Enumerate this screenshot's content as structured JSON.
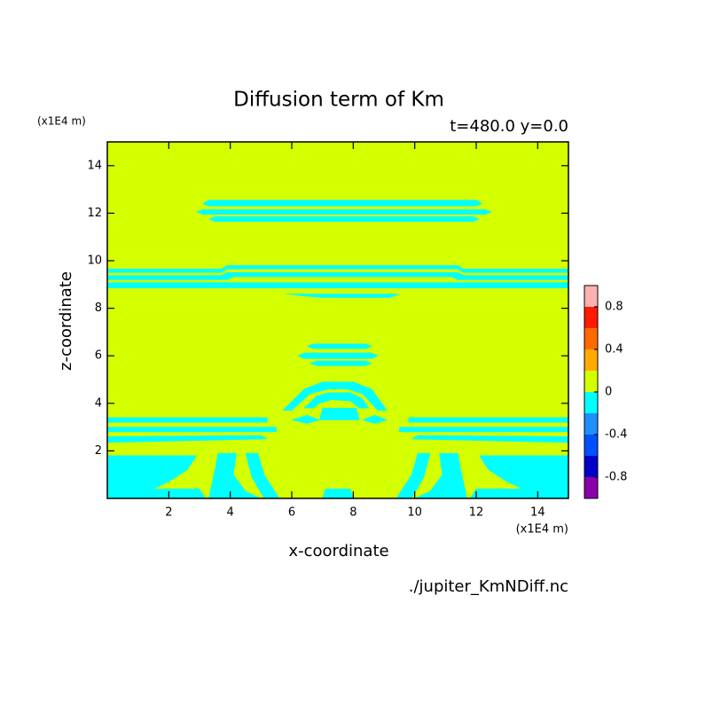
{
  "chart_data": {
    "type": "contour",
    "title": "Diffusion term of Km",
    "subtitle": "t=480.0 y=0.0",
    "xlabel": "x-coordinate",
    "ylabel": "z-coordinate",
    "x_unit": "(x1E4 m)",
    "y_unit": "(x1E4 m)",
    "footer": "./jupiter_KmNDiff.nc",
    "xlim": [
      0,
      15
    ],
    "ylim": [
      0,
      15
    ],
    "xticks": [
      2,
      4,
      6,
      8,
      10,
      12,
      14
    ],
    "yticks": [
      2,
      4,
      6,
      8,
      10,
      12,
      14
    ],
    "levels": [
      -1,
      -0.8,
      -0.6,
      -0.4,
      -0.2,
      0,
      0.2,
      0.4,
      0.6,
      0.8,
      1
    ],
    "colors": [
      "#8a00a8",
      "#0000c8",
      "#0050ff",
      "#1e90ff",
      "#00ffff",
      "#d4ff00",
      "#ffaa00",
      "#ff6a00",
      "#ff1a00",
      "#ffb0b0"
    ],
    "colorbar_ticks": [
      -0.8,
      -0.4,
      0,
      0.4,
      0.8
    ],
    "regions": [
      {
        "min": 0,
        "max": 0.2,
        "polygons": [
          [
            [
              0,
              0
            ],
            [
              0,
              15
            ],
            [
              15,
              15
            ],
            [
              15,
              0
            ]
          ]
        ]
      },
      {
        "min": -0.2,
        "max": 0,
        "polygons": [
          [
            [
              3.1,
              12.4
            ],
            [
              3.3,
              12.55
            ],
            [
              12.0,
              12.55
            ],
            [
              12.2,
              12.4
            ],
            [
              12.0,
              12.3
            ],
            [
              3.3,
              12.3
            ]
          ],
          [
            [
              2.9,
              12.05
            ],
            [
              3.1,
              12.15
            ],
            [
              12.3,
              12.15
            ],
            [
              12.5,
              12.05
            ],
            [
              12.3,
              11.95
            ],
            [
              3.1,
              11.95
            ]
          ],
          [
            [
              3.3,
              11.75
            ],
            [
              3.5,
              11.85
            ],
            [
              11.9,
              11.85
            ],
            [
              12.1,
              11.75
            ],
            [
              11.9,
              11.65
            ],
            [
              3.5,
              11.65
            ]
          ],
          [
            [
              0,
              9.5
            ],
            [
              0,
              9.65
            ],
            [
              3.7,
              9.65
            ],
            [
              3.9,
              9.8
            ],
            [
              11.4,
              9.8
            ],
            [
              11.6,
              9.65
            ],
            [
              15,
              9.65
            ],
            [
              15,
              9.5
            ],
            [
              11.6,
              9.5
            ],
            [
              11.4,
              9.65
            ],
            [
              3.9,
              9.65
            ],
            [
              3.7,
              9.5
            ]
          ],
          [
            [
              0,
              9.2
            ],
            [
              0,
              9.38
            ],
            [
              3.7,
              9.38
            ],
            [
              3.9,
              9.5
            ],
            [
              11.4,
              9.5
            ],
            [
              11.6,
              9.38
            ],
            [
              15,
              9.38
            ],
            [
              15,
              9.2
            ],
            [
              11.4,
              9.2
            ],
            [
              11.2,
              9.32
            ],
            [
              4.1,
              9.32
            ],
            [
              3.9,
              9.2
            ]
          ],
          [
            [
              0,
              8.85
            ],
            [
              0,
              9.08
            ],
            [
              15,
              9.08
            ],
            [
              15,
              8.85
            ]
          ],
          [
            [
              5.8,
              8.6
            ],
            [
              6.5,
              8.5
            ],
            [
              7,
              8.45
            ],
            [
              9.2,
              8.45
            ],
            [
              9.5,
              8.6
            ]
          ],
          [
            [
              6.5,
              6.4
            ],
            [
              6.7,
              6.5
            ],
            [
              8.4,
              6.5
            ],
            [
              8.6,
              6.4
            ],
            [
              8.4,
              6.3
            ],
            [
              6.7,
              6.3
            ]
          ],
          [
            [
              6.2,
              6.0
            ],
            [
              6.4,
              6.12
            ],
            [
              8.6,
              6.12
            ],
            [
              8.8,
              6.0
            ],
            [
              8.6,
              5.88
            ],
            [
              6.4,
              5.88
            ]
          ],
          [
            [
              6.6,
              5.68
            ],
            [
              6.8,
              5.78
            ],
            [
              8.4,
              5.78
            ],
            [
              8.6,
              5.68
            ],
            [
              8.4,
              5.58
            ],
            [
              6.8,
              5.58
            ]
          ],
          [
            [
              5.7,
              3.7
            ],
            [
              6.4,
              4.6
            ],
            [
              7.0,
              4.9
            ],
            [
              8.0,
              4.9
            ],
            [
              8.6,
              4.6
            ],
            [
              9.1,
              3.7
            ],
            [
              8.8,
              3.7
            ],
            [
              8.3,
              4.4
            ],
            [
              7.8,
              4.6
            ],
            [
              7.2,
              4.6
            ],
            [
              6.6,
              4.4
            ],
            [
              6.0,
              3.7
            ]
          ],
          [
            [
              6.4,
              3.8
            ],
            [
              6.8,
              4.3
            ],
            [
              7.2,
              4.45
            ],
            [
              7.9,
              4.45
            ],
            [
              8.3,
              4.2
            ],
            [
              8.5,
              3.8
            ],
            [
              8.2,
              3.8
            ],
            [
              7.9,
              4.1
            ],
            [
              7.3,
              4.15
            ],
            [
              6.9,
              4.0
            ],
            [
              6.7,
              3.8
            ]
          ],
          [
            [
              6.9,
              3.3
            ],
            [
              7.0,
              3.8
            ],
            [
              8.1,
              3.8
            ],
            [
              8.2,
              3.3
            ]
          ],
          [
            [
              6.0,
              3.3
            ],
            [
              6.5,
              3.5
            ],
            [
              6.9,
              3.3
            ],
            [
              6.5,
              3.15
            ]
          ],
          [
            [
              8.3,
              3.3
            ],
            [
              8.7,
              3.5
            ],
            [
              9.1,
              3.3
            ],
            [
              8.7,
              3.15
            ]
          ],
          [
            [
              0,
              3.2
            ],
            [
              0,
              3.4
            ],
            [
              5.2,
              3.4
            ],
            [
              5.2,
              3.2
            ]
          ],
          [
            [
              0,
              2.8
            ],
            [
              0,
              3.0
            ],
            [
              5.5,
              3.0
            ],
            [
              5.5,
              2.8
            ]
          ],
          [
            [
              0,
              2.35
            ],
            [
              0,
              2.6
            ],
            [
              5.0,
              2.65
            ],
            [
              5.2,
              2.5
            ]
          ],
          [
            [
              9.8,
              3.2
            ],
            [
              9.8,
              3.4
            ],
            [
              15,
              3.4
            ],
            [
              15,
              3.2
            ]
          ],
          [
            [
              9.5,
              2.8
            ],
            [
              9.5,
              3.0
            ],
            [
              15,
              3.0
            ],
            [
              15,
              2.8
            ]
          ],
          [
            [
              9.9,
              2.5
            ],
            [
              10.1,
              2.65
            ],
            [
              15,
              2.6
            ],
            [
              15,
              2.35
            ]
          ],
          [
            [
              0,
              0
            ],
            [
              0,
              1.8
            ],
            [
              2.9,
              1.8
            ],
            [
              2.6,
              1.2
            ],
            [
              2.0,
              0.7
            ],
            [
              1.5,
              0.4
            ],
            [
              3.0,
              0.4
            ],
            [
              3.2,
              0
            ]
          ],
          [
            [
              3.3,
              0
            ],
            [
              3.5,
              1.2
            ],
            [
              3.6,
              1.9
            ],
            [
              4.2,
              1.9
            ],
            [
              4.1,
              1.0
            ],
            [
              4.5,
              0.3
            ],
            [
              5.0,
              0
            ]
          ],
          [
            [
              4.5,
              1.9
            ],
            [
              4.9,
              1.9
            ],
            [
              5.1,
              1.0
            ],
            [
              5.6,
              0
            ],
            [
              5.1,
              0
            ],
            [
              4.7,
              0.9
            ]
          ],
          [
            [
              15,
              0
            ],
            [
              15,
              1.8
            ],
            [
              12.1,
              1.8
            ],
            [
              12.4,
              1.2
            ],
            [
              13.0,
              0.7
            ],
            [
              13.5,
              0.4
            ],
            [
              12.0,
              0.4
            ],
            [
              11.8,
              0
            ]
          ],
          [
            [
              11.7,
              0
            ],
            [
              11.5,
              1.2
            ],
            [
              11.4,
              1.9
            ],
            [
              10.8,
              1.9
            ],
            [
              10.9,
              1.0
            ],
            [
              10.5,
              0.3
            ],
            [
              10.0,
              0
            ]
          ],
          [
            [
              10.5,
              1.9
            ],
            [
              10.1,
              1.9
            ],
            [
              9.9,
              1.0
            ],
            [
              9.4,
              0
            ],
            [
              9.9,
              0
            ],
            [
              10.3,
              0.9
            ]
          ],
          [
            [
              7.0,
              0
            ],
            [
              7.1,
              0.4
            ],
            [
              7.9,
              0.4
            ],
            [
              8.0,
              0
            ]
          ]
        ]
      }
    ]
  }
}
